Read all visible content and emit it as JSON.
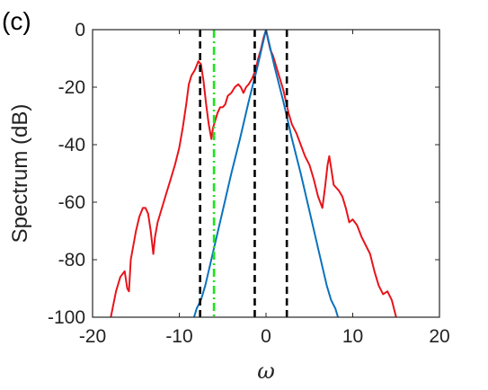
{
  "panel_label": "(c)",
  "chart_data": {
    "type": "line",
    "title": "",
    "xlabel": "ω",
    "ylabel": "Spectrum (dB)",
    "xlim": [
      -20,
      20
    ],
    "ylim": [
      -100,
      0
    ],
    "xticks": [
      -20,
      -10,
      0,
      10,
      20
    ],
    "yticks": [
      0,
      -20,
      -40,
      -60,
      -80,
      -100
    ],
    "grid": false,
    "series": [
      {
        "color": "#e8141b",
        "x": [
          -17.9,
          -17.3,
          -16.8,
          -16.3,
          -16.0,
          -15.8,
          -15.6,
          -15.3,
          -15.0,
          -14.6,
          -14.2,
          -13.9,
          -13.6,
          -13.3,
          -13.0,
          -12.8,
          -12.5,
          -12.0,
          -11.5,
          -11.0,
          -10.5,
          -10.0,
          -9.6,
          -9.2,
          -8.9,
          -8.6,
          -8.2,
          -7.8,
          -7.5,
          -7.2,
          -6.9,
          -6.6,
          -6.3,
          -6.1,
          -5.9,
          -5.6,
          -5.3,
          -5.0,
          -4.7,
          -4.4,
          -4.0,
          -3.6,
          -3.2,
          -2.9,
          -2.6,
          -2.3,
          -2.0,
          -1.6,
          -1.2,
          -0.9,
          -0.6,
          -0.3,
          0.0,
          0.2,
          0.5,
          0.8,
          1.1,
          1.4,
          1.7,
          2.0,
          2.3,
          2.6,
          3.0,
          3.5,
          4.0,
          4.5,
          5.0,
          5.5,
          6.0,
          6.5,
          6.8,
          7.1,
          7.3,
          7.5,
          7.8,
          8.1,
          8.4,
          8.8,
          9.2,
          9.6,
          10.0,
          10.5,
          11.0,
          11.5,
          12.0,
          12.5,
          13.0,
          13.5,
          14.0,
          14.5,
          15.0
        ],
        "y": [
          -100,
          -91,
          -86,
          -84,
          -90,
          -91,
          -80,
          -75,
          -70,
          -65,
          -62,
          -62,
          -64,
          -70,
          -78,
          -72,
          -67,
          -62,
          -57,
          -52,
          -47,
          -41,
          -34,
          -26,
          -19,
          -16,
          -14,
          -11,
          -12,
          -18,
          -26,
          -33,
          -38,
          -34,
          -32,
          -29,
          -27,
          -27,
          -26,
          -23,
          -22,
          -20,
          -19,
          -20,
          -22,
          -20,
          -19,
          -17,
          -14,
          -10,
          -7,
          -3,
          0,
          -3,
          -7,
          -9,
          -12,
          -15,
          -18,
          -21,
          -25,
          -29,
          -33,
          -36,
          -40,
          -44,
          -47,
          -52,
          -58,
          -62,
          -55,
          -47,
          -44,
          -48,
          -54,
          -55,
          -56,
          -58,
          -62,
          -67,
          -66,
          -68,
          -72,
          -75,
          -78,
          -84,
          -89,
          -92,
          -91,
          -94,
          -100
        ]
      },
      {
        "color": "#0a72bd",
        "x": [
          -8.3,
          -8.0,
          -7.5,
          -7.0,
          -6.0,
          -5.0,
          -4.0,
          -3.0,
          -2.0,
          -1.0,
          0.0,
          1.0,
          2.0,
          3.0,
          4.0,
          5.0,
          6.0,
          7.0,
          7.5,
          8.0,
          8.3
        ],
        "y": [
          -100,
          -97,
          -94,
          -89,
          -76,
          -63,
          -50,
          -38,
          -25,
          -13,
          0,
          -13,
          -25,
          -38,
          -50,
          -63,
          -76,
          -89,
          -94,
          -97,
          -100
        ]
      }
    ],
    "vlines": [
      {
        "x": -7.6,
        "color": "#000000",
        "style": "dashed"
      },
      {
        "x": -1.3,
        "color": "#000000",
        "style": "dashed"
      },
      {
        "x": 2.4,
        "color": "#000000",
        "style": "dashed"
      },
      {
        "x": -6.0,
        "color": "#19e619",
        "style": "dashdot"
      }
    ]
  }
}
